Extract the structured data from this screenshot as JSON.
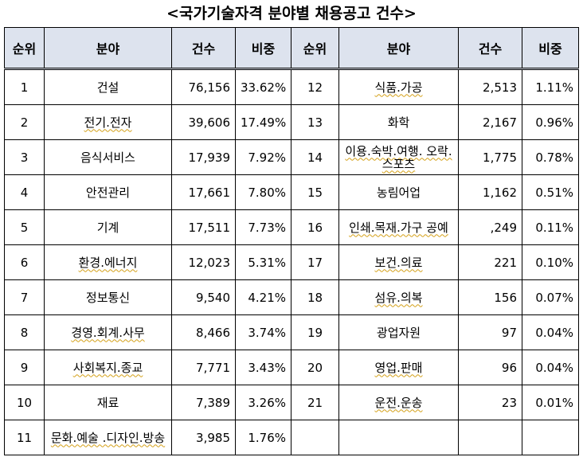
{
  "title": "<국가기술자격 분야별 채용공고 건수>",
  "headers": [
    "순위",
    "분야",
    "건수",
    "비중",
    "순위",
    "분야",
    "건수",
    "비중"
  ],
  "left_rows": [
    {
      "rank": "1",
      "field": "건설",
      "count": "76,156",
      "ratio": "33.62%",
      "marked": false
    },
    {
      "rank": "2",
      "field": "전기.전자",
      "count": "39,606",
      "ratio": "17.49%",
      "marked": true
    },
    {
      "rank": "3",
      "field": "음식서비스",
      "count": "17,939",
      "ratio": "7.92%",
      "marked": false
    },
    {
      "rank": "4",
      "field": "안전관리",
      "count": "17,661",
      "ratio": "7.80%",
      "marked": false
    },
    {
      "rank": "5",
      "field": "기계",
      "count": "17,511",
      "ratio": "7.73%",
      "marked": false
    },
    {
      "rank": "6",
      "field": "환경.에너지",
      "count": "12,023",
      "ratio": "5.31%",
      "marked": true
    },
    {
      "rank": "7",
      "field": "정보통신",
      "count": "9,540",
      "ratio": "4.21%",
      "marked": false
    },
    {
      "rank": "8",
      "field": "경영.회계.사무",
      "count": "8,466",
      "ratio": "3.74%",
      "marked": true
    },
    {
      "rank": "9",
      "field": "사회복지.종교",
      "count": "7,771",
      "ratio": "3.43%",
      "marked": true
    },
    {
      "rank": "10",
      "field": "재료",
      "count": "7,389",
      "ratio": "3.26%",
      "marked": false
    },
    {
      "rank": "11",
      "field": "문화.예술 .디자인.방송",
      "count": "3,985",
      "ratio": "1.76%",
      "marked": true
    }
  ],
  "right_rows": [
    {
      "rank": "12",
      "field": "식품.가공",
      "count": "2,513",
      "ratio": "1.11%",
      "marked": true
    },
    {
      "rank": "13",
      "field": "화학",
      "count": "2,167",
      "ratio": "0.96%",
      "marked": false
    },
    {
      "rank": "14",
      "field": "이용.숙박.여행. 오락.스포츠",
      "count": "1,775",
      "ratio": "0.78%",
      "marked": true
    },
    {
      "rank": "15",
      "field": "농림어업",
      "count": "1,162",
      "ratio": "0.51%",
      "marked": false
    },
    {
      "rank": "16",
      "field": "인쇄.목재.가구 공예",
      "count": ",249",
      "ratio": "0.11%",
      "marked": true
    },
    {
      "rank": "17",
      "field": "보건.의료",
      "count": "221",
      "ratio": "0.10%",
      "marked": true
    },
    {
      "rank": "18",
      "field": "섬유.의복",
      "count": "156",
      "ratio": "0.07%",
      "marked": true
    },
    {
      "rank": "19",
      "field": "광업자원",
      "count": "97",
      "ratio": "0.04%",
      "marked": false
    },
    {
      "rank": "20",
      "field": "영업.판매",
      "count": "96",
      "ratio": "0.04%",
      "marked": true
    },
    {
      "rank": "21",
      "field": "운전.운송",
      "count": "23",
      "ratio": "0.01%",
      "marked": true
    },
    {
      "rank": "",
      "field": "",
      "count": "",
      "ratio": "",
      "marked": false
    }
  ]
}
